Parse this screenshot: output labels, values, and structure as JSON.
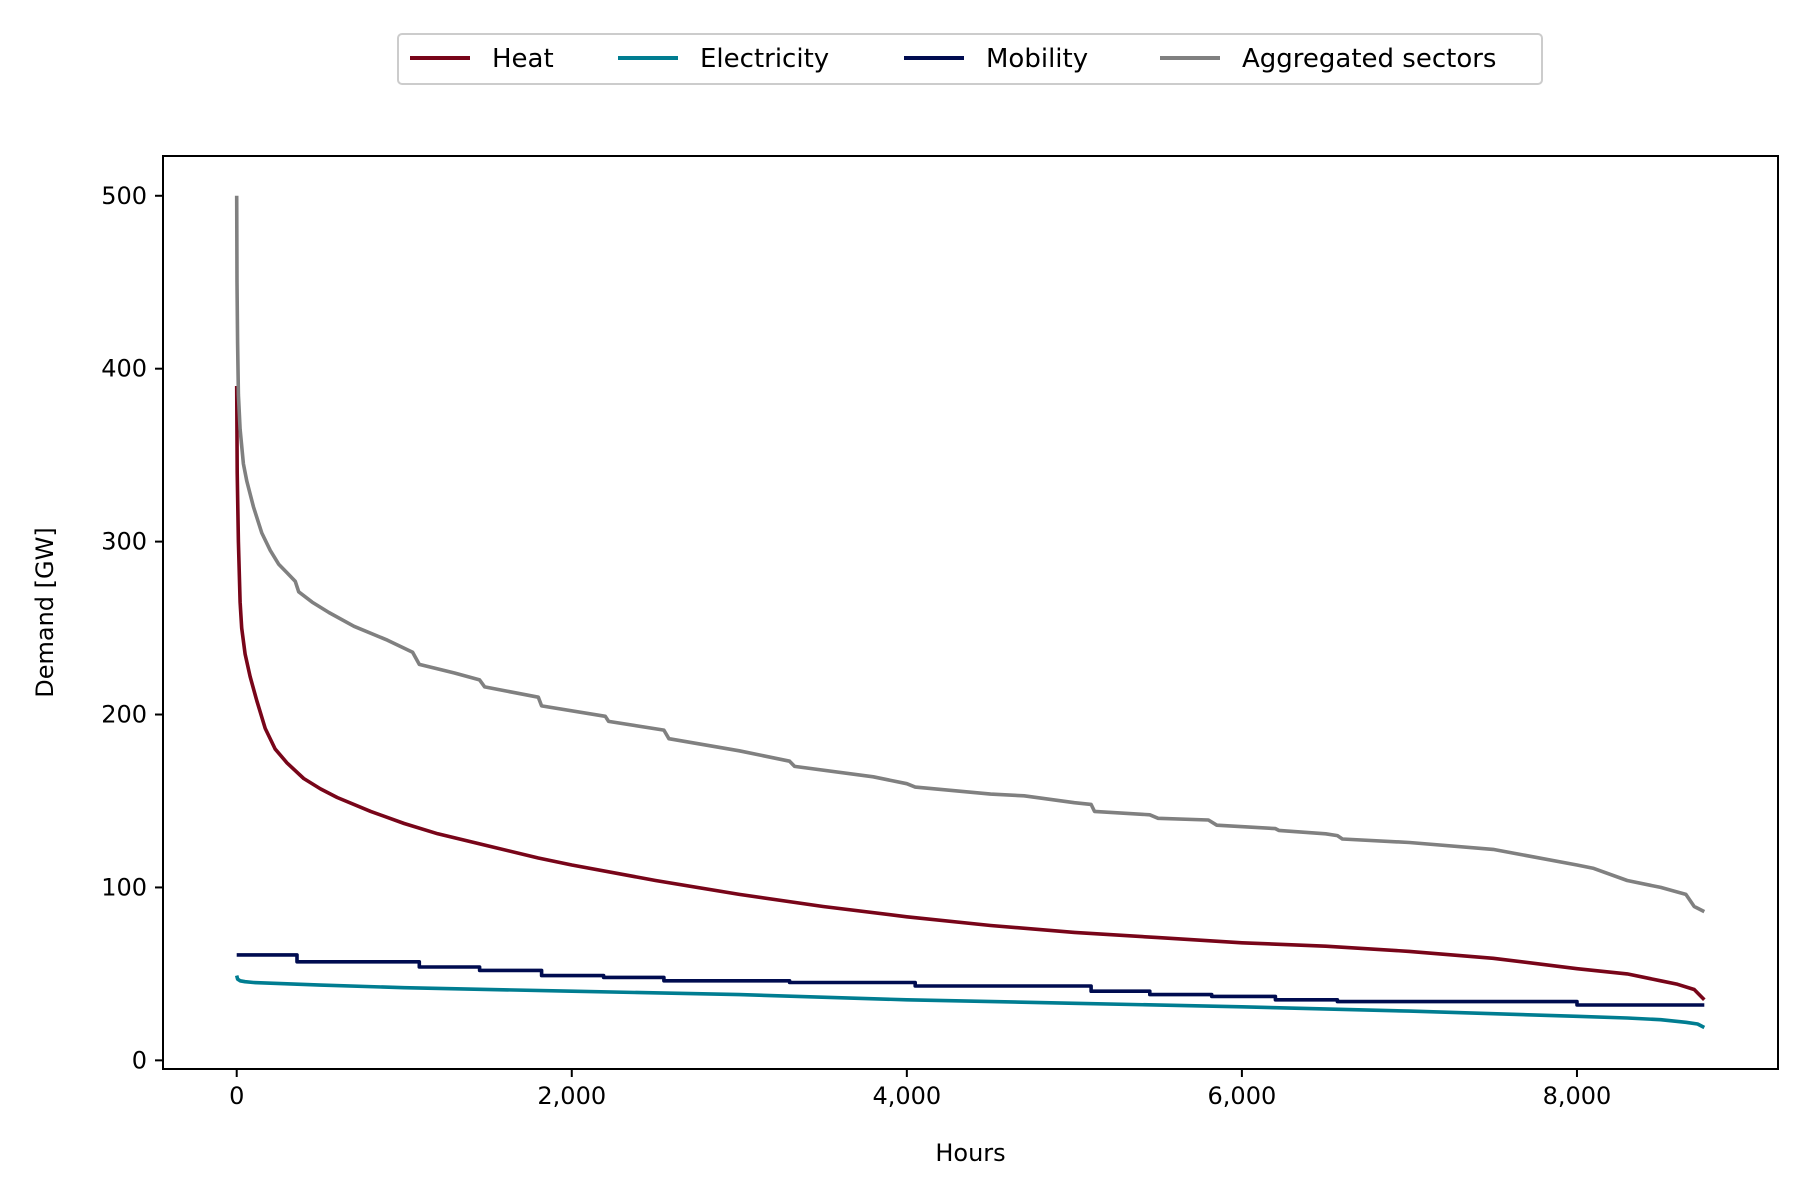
{
  "chart_data": {
    "type": "line",
    "title": "",
    "xlabel": "Hours",
    "ylabel": "Demand [GW]",
    "xlim": [
      -440,
      9200
    ],
    "ylim": [
      -5,
      523
    ],
    "xticks": [
      0,
      2000,
      4000,
      6000,
      8000
    ],
    "xtick_labels": [
      "0",
      "2,000",
      "4,000",
      "6,000",
      "8,000"
    ],
    "yticks": [
      0,
      100,
      200,
      300,
      400,
      500
    ],
    "ytick_labels": [
      "0",
      "100",
      "200",
      "300",
      "400",
      "500"
    ],
    "grid": false,
    "legend_position": "top-center (outside plot)",
    "series": [
      {
        "name": "Heat",
        "color": "#780519",
        "x": [
          0,
          3,
          10,
          20,
          30,
          50,
          80,
          120,
          170,
          230,
          300,
          400,
          500,
          600,
          800,
          1000,
          1200,
          1500,
          1800,
          2000,
          2500,
          3000,
          3500,
          4000,
          4500,
          5000,
          5500,
          6000,
          6500,
          7000,
          7500,
          8000,
          8300,
          8500,
          8600,
          8700,
          8760
        ],
        "values": [
          390,
          340,
          300,
          265,
          250,
          235,
          222,
          208,
          192,
          180,
          172,
          163,
          157,
          152,
          144,
          137,
          131,
          124,
          117,
          113,
          104,
          96,
          89,
          83,
          78,
          74,
          71,
          68,
          66,
          63,
          59,
          53,
          50,
          46,
          44,
          41,
          35
        ]
      },
      {
        "name": "Electricity",
        "color": "#007d91",
        "x": [
          0,
          5,
          20,
          50,
          100,
          500,
          1000,
          2000,
          3000,
          4000,
          5000,
          6000,
          7000,
          8000,
          8300,
          8500,
          8650,
          8720,
          8760
        ],
        "values": [
          49,
          47,
          46,
          45.5,
          45,
          43.5,
          42,
          40,
          38,
          35,
          33,
          31,
          28.5,
          25.5,
          24.5,
          23.5,
          22,
          21,
          19
        ]
      },
      {
        "name": "Mobility",
        "color": "#000c50",
        "x": [
          0,
          360,
          360,
          1090,
          1090,
          1450,
          1450,
          1820,
          1820,
          2190,
          2190,
          2550,
          2550,
          3300,
          3300,
          4050,
          4050,
          5100,
          5100,
          5450,
          5450,
          5820,
          5820,
          6200,
          6200,
          6570,
          6570,
          8000,
          8000,
          8760
        ],
        "values": [
          61,
          61,
          57,
          57,
          54,
          54,
          52,
          52,
          49,
          49,
          48,
          48,
          46,
          46,
          45,
          45,
          43,
          43,
          40,
          40,
          38,
          38,
          37,
          37,
          35,
          35,
          34,
          34,
          32,
          32
        ]
      },
      {
        "name": "Aggregated sectors",
        "color": "#808080",
        "x": [
          0,
          2,
          5,
          10,
          20,
          40,
          60,
          100,
          150,
          200,
          250,
          300,
          350,
          370,
          450,
          550,
          700,
          900,
          1050,
          1090,
          1300,
          1450,
          1480,
          1800,
          1820,
          2200,
          2220,
          2550,
          2580,
          3000,
          3300,
          3330,
          3800,
          4000,
          4050,
          4500,
          4700,
          5000,
          5100,
          5120,
          5450,
          5500,
          5800,
          5850,
          6200,
          6220,
          6500,
          6570,
          6600,
          7000,
          7500,
          8000,
          8100,
          8300,
          8500,
          8650,
          8700,
          8760
        ],
        "values": [
          500,
          450,
          415,
          385,
          365,
          345,
          335,
          320,
          305,
          295,
          287,
          282,
          277,
          271,
          265,
          259,
          251,
          243,
          236,
          229,
          224,
          220,
          216,
          210,
          205,
          199,
          196,
          191,
          186,
          179,
          173,
          170,
          164,
          160,
          158,
          154,
          153,
          149,
          148,
          144,
          142,
          140,
          139,
          136,
          134,
          133,
          131,
          130,
          128,
          126,
          122,
          113,
          111,
          104,
          100,
          96,
          89,
          86
        ]
      }
    ]
  }
}
